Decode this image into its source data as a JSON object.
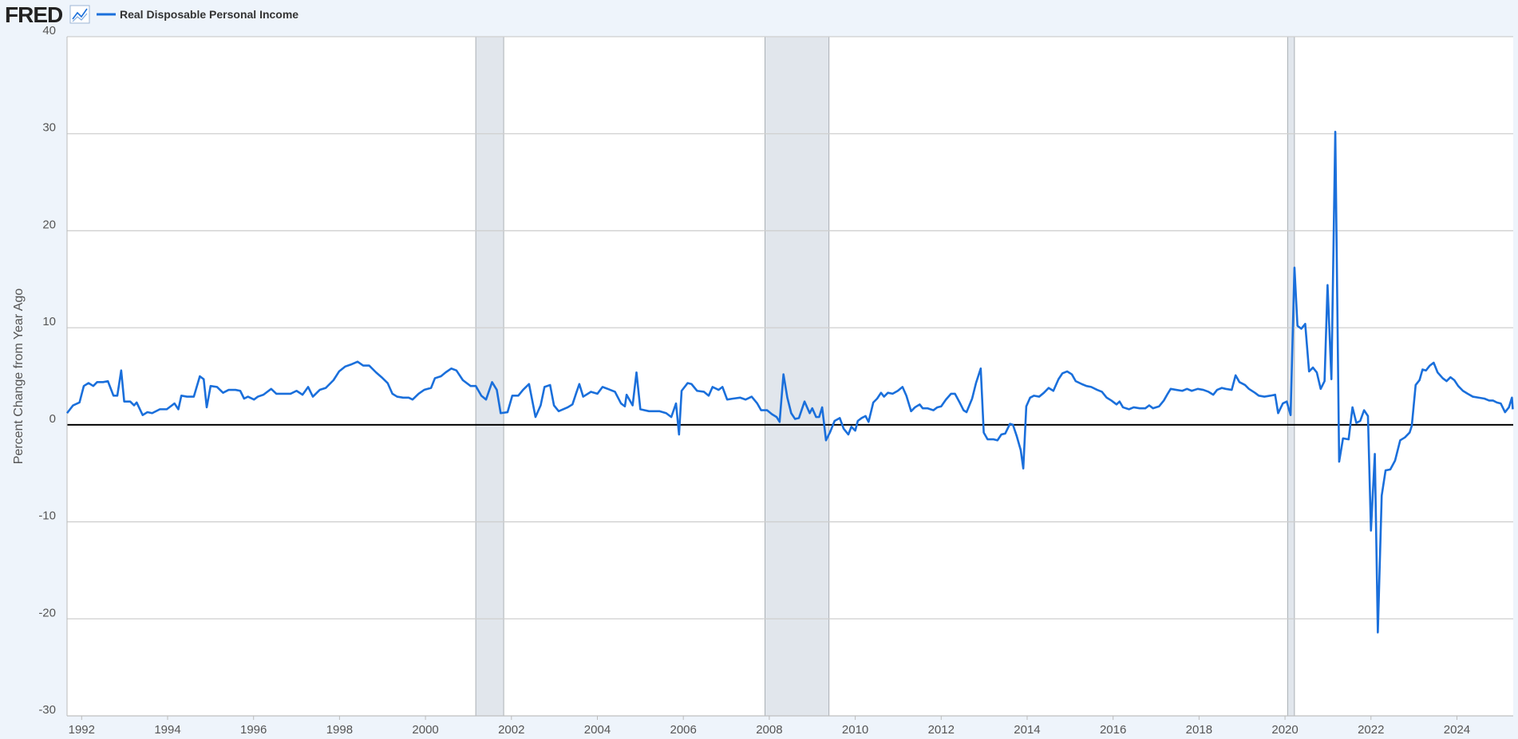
{
  "logo": "FRED",
  "chart_data": {
    "type": "line",
    "y_label": "Percent Change from Year Ago",
    "grid": true,
    "zero_line": true,
    "xlim": [
      1991.66,
      2025.31
    ],
    "xticks": [
      1992,
      1994,
      1996,
      1998,
      2000,
      2002,
      2004,
      2006,
      2008,
      2010,
      2012,
      2014,
      2016,
      2018,
      2020,
      2022,
      2024
    ],
    "ylim": [
      -30,
      40
    ],
    "yticks": [
      -30,
      -20,
      -10,
      0,
      10,
      20,
      30,
      40
    ],
    "shaded_periods": [
      [
        2001.17,
        2001.82
      ],
      [
        2007.9,
        2009.39
      ],
      [
        2020.06,
        2020.22
      ]
    ],
    "shade_color": "#e1e6ec",
    "x": [
      1991.66,
      1991.8,
      1991.95,
      1992.05,
      1992.16,
      1992.27,
      1992.36,
      1992.5,
      1992.61,
      1992.74,
      1992.83,
      1992.92,
      1992.99,
      1993.13,
      1993.22,
      1993.28,
      1993.42,
      1993.53,
      1993.64,
      1993.82,
      1993.98,
      1994.07,
      1994.16,
      1994.25,
      1994.32,
      1994.45,
      1994.61,
      1994.75,
      1994.84,
      1994.91,
      1995.0,
      1995.15,
      1995.29,
      1995.42,
      1995.58,
      1995.69,
      1995.78,
      1995.87,
      1996.01,
      1996.1,
      1996.23,
      1996.41,
      1996.53,
      1996.68,
      1996.86,
      1997.0,
      1997.14,
      1997.27,
      1997.38,
      1997.54,
      1997.68,
      1997.86,
      1997.99,
      1998.13,
      1998.26,
      1998.42,
      1998.55,
      1998.69,
      1998.85,
      1998.98,
      1999.12,
      1999.23,
      1999.34,
      1999.48,
      1999.61,
      1999.7,
      1999.84,
      1999.97,
      2000.13,
      2000.22,
      2000.36,
      2000.47,
      2000.6,
      2000.72,
      2000.87,
      2001.05,
      2001.17,
      2001.3,
      2001.41,
      2001.55,
      2001.66,
      2001.75,
      2001.91,
      2002.02,
      2002.16,
      2002.27,
      2002.41,
      2002.56,
      2002.68,
      2002.77,
      2002.9,
      2002.99,
      2003.1,
      2003.31,
      2003.42,
      2003.51,
      2003.58,
      2003.67,
      2003.85,
      2004.0,
      2004.12,
      2004.3,
      2004.41,
      2004.55,
      2004.64,
      2004.68,
      2004.82,
      2004.91,
      2005.0,
      2005.2,
      2005.33,
      2005.45,
      2005.6,
      2005.72,
      2005.83,
      2005.9,
      2005.96,
      2006.1,
      2006.19,
      2006.32,
      2006.48,
      2006.59,
      2006.68,
      2006.82,
      2006.91,
      2007.02,
      2007.16,
      2007.32,
      2007.45,
      2007.59,
      2007.72,
      2007.81,
      2007.95,
      2008.06,
      2008.17,
      2008.24,
      2008.33,
      2008.42,
      2008.51,
      2008.6,
      2008.69,
      2008.82,
      2008.94,
      2009.0,
      2009.09,
      2009.16,
      2009.23,
      2009.32,
      2009.41,
      2009.52,
      2009.64,
      2009.73,
      2009.84,
      2009.91,
      2010.0,
      2010.06,
      2010.15,
      2010.24,
      2010.31,
      2010.42,
      2010.51,
      2010.6,
      2010.67,
      2010.76,
      2010.87,
      2010.99,
      2011.1,
      2011.19,
      2011.3,
      2011.39,
      2011.5,
      2011.57,
      2011.68,
      2011.82,
      2011.91,
      2012.0,
      2012.11,
      2012.23,
      2012.32,
      2012.43,
      2012.52,
      2012.59,
      2012.72,
      2012.81,
      2012.92,
      2012.99,
      2013.08,
      2013.22,
      2013.31,
      2013.4,
      2013.49,
      2013.6,
      2013.67,
      2013.76,
      2013.85,
      2013.91,
      2013.98,
      2014.07,
      2014.16,
      2014.28,
      2014.39,
      2014.5,
      2014.61,
      2014.73,
      2014.82,
      2014.93,
      2015.04,
      2015.13,
      2015.27,
      2015.38,
      2015.49,
      2015.63,
      2015.74,
      2015.85,
      2015.96,
      2016.08,
      2016.15,
      2016.23,
      2016.37,
      2016.48,
      2016.62,
      2016.75,
      2016.84,
      2016.93,
      2017.07,
      2017.18,
      2017.27,
      2017.34,
      2017.47,
      2017.61,
      2017.72,
      2017.83,
      2017.97,
      2018.1,
      2018.22,
      2018.33,
      2018.42,
      2018.53,
      2018.62,
      2018.76,
      2018.85,
      2018.94,
      2019.07,
      2019.16,
      2019.3,
      2019.39,
      2019.52,
      2019.66,
      2019.77,
      2019.84,
      2019.95,
      2020.04,
      2020.13,
      2020.22,
      2020.29,
      2020.38,
      2020.47,
      2020.56,
      2020.65,
      2020.74,
      2020.83,
      2020.92,
      2020.99,
      2021.08,
      2021.17,
      2021.26,
      2021.35,
      2021.48,
      2021.57,
      2021.66,
      2021.75,
      2021.84,
      2021.93,
      2022.0,
      2022.09,
      2022.16,
      2022.25,
      2022.34,
      2022.45,
      2022.56,
      2022.68,
      2022.79,
      2022.9,
      2022.95,
      2023.04,
      2023.13,
      2023.2,
      2023.28,
      2023.37,
      2023.46,
      2023.55,
      2023.67,
      2023.76,
      2023.85,
      2023.94,
      2024.03,
      2024.14,
      2024.25,
      2024.37,
      2024.5,
      2024.64,
      2024.75,
      2024.84,
      2024.93,
      2025.02,
      2025.12,
      2025.21,
      2025.28,
      2025.3
    ],
    "series": [
      {
        "name": "Real Disposable Personal Income",
        "color": "#1a6fdb",
        "values": [
          1.2,
          2.0,
          2.3,
          4.0,
          4.3,
          4.0,
          4.4,
          4.4,
          4.5,
          3.0,
          3.0,
          5.6,
          2.4,
          2.4,
          2.0,
          2.3,
          1.0,
          1.3,
          1.2,
          1.6,
          1.6,
          1.9,
          2.2,
          1.6,
          3.0,
          2.9,
          2.9,
          5.0,
          4.7,
          1.8,
          4.0,
          3.9,
          3.3,
          3.6,
          3.6,
          3.5,
          2.7,
          2.9,
          2.6,
          2.9,
          3.1,
          3.7,
          3.2,
          3.2,
          3.2,
          3.5,
          3.1,
          3.9,
          2.9,
          3.6,
          3.8,
          4.6,
          5.5,
          6.0,
          6.2,
          6.5,
          6.1,
          6.1,
          5.4,
          4.9,
          4.3,
          3.2,
          2.9,
          2.8,
          2.8,
          2.6,
          3.2,
          3.6,
          3.8,
          4.8,
          5.0,
          5.4,
          5.8,
          5.6,
          4.6,
          4.0,
          4.0,
          3.0,
          2.6,
          4.4,
          3.6,
          1.2,
          1.3,
          3.0,
          3.0,
          3.6,
          4.2,
          0.8,
          2.0,
          3.9,
          4.1,
          2.0,
          1.4,
          1.8,
          2.1,
          3.3,
          4.2,
          2.9,
          3.4,
          3.2,
          3.9,
          3.6,
          3.4,
          2.2,
          1.9,
          3.1,
          2.0,
          5.4,
          1.6,
          1.4,
          1.4,
          1.4,
          1.2,
          0.8,
          2.2,
          -1.0,
          3.5,
          4.3,
          4.2,
          3.5,
          3.4,
          3.0,
          3.9,
          3.6,
          3.9,
          2.6,
          2.7,
          2.8,
          2.6,
          2.9,
          2.2,
          1.5,
          1.5,
          1.1,
          0.8,
          0.3,
          5.2,
          2.8,
          1.2,
          0.6,
          0.7,
          2.4,
          1.2,
          1.7,
          0.8,
          0.8,
          1.8,
          -1.6,
          -0.8,
          0.4,
          0.7,
          -0.4,
          -1.0,
          -0.2,
          -0.6,
          0.4,
          0.7,
          0.9,
          0.3,
          2.3,
          2.7,
          3.3,
          2.9,
          3.3,
          3.2,
          3.5,
          3.9,
          3.0,
          1.4,
          1.8,
          2.1,
          1.7,
          1.7,
          1.5,
          1.8,
          1.9,
          2.6,
          3.2,
          3.2,
          2.3,
          1.5,
          1.3,
          2.7,
          4.3,
          5.8,
          -0.8,
          -1.5,
          -1.5,
          -1.6,
          -1.0,
          -0.9,
          0.1,
          0.0,
          -1.2,
          -2.6,
          -4.5,
          1.9,
          2.8,
          3.0,
          2.9,
          3.3,
          3.8,
          3.5,
          4.7,
          5.3,
          5.5,
          5.2,
          4.5,
          4.2,
          4.0,
          3.9,
          3.6,
          3.4,
          2.8,
          2.5,
          2.1,
          2.4,
          1.8,
          1.6,
          1.8,
          1.7,
          1.7,
          2.0,
          1.7,
          1.9,
          2.5,
          3.2,
          3.7,
          3.6,
          3.5,
          3.7,
          3.5,
          3.7,
          3.6,
          3.4,
          3.1,
          3.6,
          3.8,
          3.7,
          3.6,
          5.1,
          4.4,
          4.1,
          3.7,
          3.3,
          3.0,
          2.9,
          3.0,
          3.1,
          1.2,
          2.2,
          2.4,
          1.0,
          16.2,
          10.2,
          9.9,
          10.4,
          5.5,
          5.9,
          5.4,
          3.7,
          4.5,
          14.4,
          4.7,
          30.2,
          -3.8,
          -1.4,
          -1.5,
          1.8,
          0.2,
          0.4,
          1.5,
          0.9,
          -10.9,
          -3.0,
          -21.4,
          -7.3,
          -4.7,
          -4.6,
          -3.7,
          -1.6,
          -1.3,
          -0.8,
          -0.1,
          4.1,
          4.6,
          5.7,
          5.6,
          6.1,
          6.4,
          5.4,
          4.8,
          4.5,
          4.9,
          4.6,
          4.0,
          3.5,
          3.2,
          2.9,
          2.8,
          2.7,
          2.5,
          2.5,
          2.3,
          2.2,
          1.3,
          1.8,
          2.8,
          1.6
        ]
      }
    ]
  }
}
